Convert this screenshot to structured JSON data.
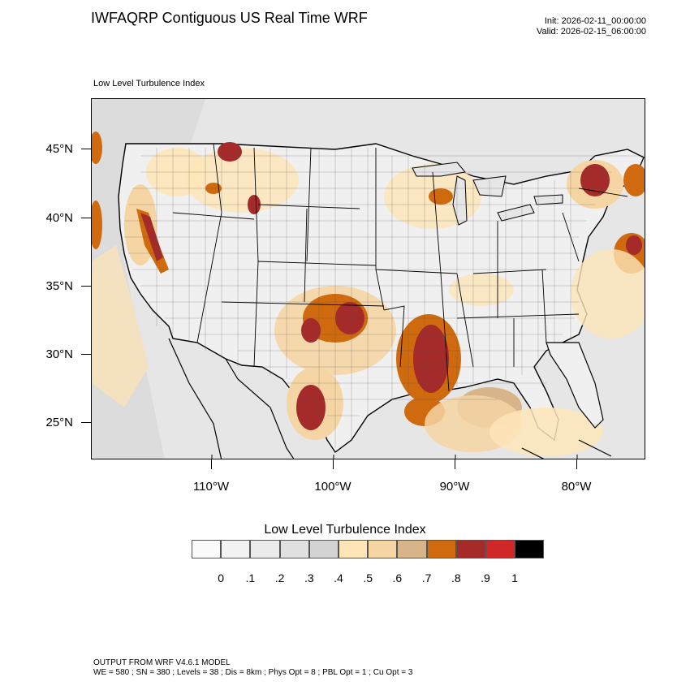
{
  "header": {
    "title": "IWFAQRP Contiguous US Real Time WRF",
    "init": "Init: 2026-02-11_00:00:00",
    "valid": "Valid: 2026-02-15_06:00:00",
    "subtitle": "Low Level Turbulence Index"
  },
  "map": {
    "lat_labels": [
      "45°N",
      "40°N",
      "35°N",
      "30°N",
      "25°N"
    ],
    "lon_labels": [
      "110°W",
      "100°W",
      "90°W",
      "80°W"
    ]
  },
  "colorbar": {
    "title": "Low Level Turbulence Index",
    "colors": [
      "#fafafa",
      "#f2f2f2",
      "#ebebeb",
      "#e0e0e0",
      "#d3d3d3",
      "#fde5b8",
      "#f5d5a3",
      "#d8b48a",
      "#cf6a0e",
      "#a52a2a",
      "#d02828",
      "#000000"
    ],
    "labels": [
      "0",
      ".1",
      ".2",
      ".3",
      ".4",
      ".5",
      ".6",
      ".7",
      ".8",
      ".9",
      "1"
    ]
  },
  "footer": {
    "line1": "OUTPUT FROM WRF V4.6.1 MODEL",
    "line2": "WE = 580 ; SN = 380 ; Levels = 38 ; Dis = 8km ; Phys Opt = 8 ; PBL Opt = 1 ; Cu Opt = 3"
  }
}
